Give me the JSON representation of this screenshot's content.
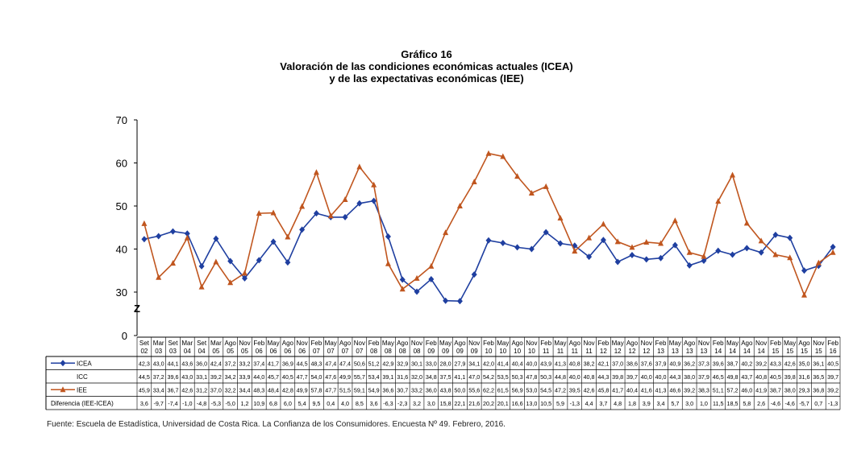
{
  "titles": {
    "line1": "Gráfico 16",
    "line2": "Valoración de las condiciones económicas actuales (ICEA)",
    "line3": "y de las expectativas económicas (IEE)"
  },
  "source": "Fuente: Escuela de Estadística, Universidad de Costa Rica. La Confianza de los Consumidores. Encuesta Nº 49. Febrero, 2016.",
  "colors": {
    "icea": "#1f3fa0",
    "iee": "#c0561f",
    "grid": "#000000"
  },
  "chart_data": {
    "type": "line",
    "ylim": [
      0,
      70
    ],
    "yticks": [
      "0",
      "30",
      "40",
      "50",
      "60",
      "70"
    ],
    "axis_break_marker": "Z",
    "grid": false,
    "legend": "left-table",
    "categories": [
      [
        "Set",
        "02"
      ],
      [
        "Mar",
        "03"
      ],
      [
        "Set",
        "03"
      ],
      [
        "Mar",
        "04"
      ],
      [
        "Set",
        "04"
      ],
      [
        "Mar",
        "05"
      ],
      [
        "Ago",
        "05"
      ],
      [
        "Nov",
        "05"
      ],
      [
        "Feb",
        "06"
      ],
      [
        "May",
        "06"
      ],
      [
        "Ago",
        "06"
      ],
      [
        "Nov",
        "06"
      ],
      [
        "Feb",
        "07"
      ],
      [
        "May",
        "07"
      ],
      [
        "Ago",
        "07"
      ],
      [
        "Nov",
        "07"
      ],
      [
        "Feb",
        "08"
      ],
      [
        "May",
        "08"
      ],
      [
        "Ago",
        "08"
      ],
      [
        "Nov",
        "08"
      ],
      [
        "Feb",
        "09"
      ],
      [
        "May",
        "09"
      ],
      [
        "Ago",
        "09"
      ],
      [
        "Nov",
        "09"
      ],
      [
        "Feb",
        "10"
      ],
      [
        "May",
        "10"
      ],
      [
        "Ago",
        "10"
      ],
      [
        "Nov",
        "10"
      ],
      [
        "Feb",
        "11"
      ],
      [
        "May",
        "11"
      ],
      [
        "Ago",
        "11"
      ],
      [
        "Nov",
        "11"
      ],
      [
        "Feb",
        "12"
      ],
      [
        "May",
        "12"
      ],
      [
        "Ago",
        "12"
      ],
      [
        "Nov",
        "12"
      ],
      [
        "Feb",
        "13"
      ],
      [
        "May",
        "13"
      ],
      [
        "Ago",
        "13"
      ],
      [
        "Nov",
        "13"
      ],
      [
        "Feb",
        "14"
      ],
      [
        "May",
        "14"
      ],
      [
        "Ago",
        "14"
      ],
      [
        "Nov",
        "14"
      ],
      [
        "Feb",
        "15"
      ],
      [
        "May",
        "15"
      ],
      [
        "Ago",
        "15"
      ],
      [
        "Nov",
        "15"
      ],
      [
        "Feb",
        "16"
      ]
    ],
    "series": [
      {
        "name": "ICEA",
        "color": "#1f3fa0",
        "marker": "diamond",
        "show": true,
        "values": [
          "42,3",
          "43,0",
          "44,1",
          "43,6",
          "36,0",
          "42,4",
          "37,2",
          "33,2",
          "37,4",
          "41,7",
          "36,9",
          "44,5",
          "48,3",
          "47,4",
          "47,4",
          "50,6",
          "51,2",
          "42,9",
          "32,9",
          "30,1",
          "33,0",
          "28,0",
          "27,9",
          "34,1",
          "42,0",
          "41,4",
          "40,4",
          "40,0",
          "43,9",
          "41,3",
          "40,8",
          "38,2",
          "42,1",
          "37,0",
          "38,6",
          "37,6",
          "37,9",
          "40,9",
          "36,2",
          "37,3",
          "39,6",
          "38,7",
          "40,2",
          "39,2",
          "43,3",
          "42,6",
          "35,0",
          "36,1",
          "40,5"
        ]
      },
      {
        "name": "ICC",
        "color": "#000000",
        "marker": "none",
        "show": false,
        "values": [
          "44,5",
          "37,2",
          "39,6",
          "43,0",
          "33,1",
          "39,2",
          "34,2",
          "33,9",
          "44,0",
          "45,7",
          "40,5",
          "47,7",
          "54,0",
          "47,6",
          "49,9",
          "55,7",
          "53,4",
          "39,1",
          "31,6",
          "32,0",
          "34,8",
          "37,5",
          "41,1",
          "47,0",
          "54,2",
          "53,5",
          "50,3",
          "47,8",
          "50,3",
          "44,8",
          "40,0",
          "40,8",
          "44,3",
          "39,8",
          "39,7",
          "40,0",
          "40,0",
          "44,3",
          "38,0",
          "37,9",
          "46,5",
          "49,8",
          "43,7",
          "40,8",
          "40,5",
          "39,8",
          "31,6",
          "36,5",
          "39,7"
        ]
      },
      {
        "name": "IEE",
        "color": "#c0561f",
        "marker": "triangle",
        "show": true,
        "values": [
          "45,9",
          "33,4",
          "36,7",
          "42,6",
          "31,2",
          "37,0",
          "32,2",
          "34,4",
          "48,3",
          "48,4",
          "42,8",
          "49,9",
          "57,8",
          "47,7",
          "51,5",
          "59,1",
          "54,9",
          "36,6",
          "30,7",
          "33,2",
          "36,0",
          "43,8",
          "50,0",
          "55,6",
          "62,2",
          "61,5",
          "56,9",
          "53,0",
          "54,5",
          "47,2",
          "39,5",
          "42,6",
          "45,8",
          "41,7",
          "40,4",
          "41,6",
          "41,3",
          "46,6",
          "39,2",
          "38,3",
          "51,1",
          "57,2",
          "46,0",
          "41,9",
          "38,7",
          "38,0",
          "29,3",
          "36,8",
          "39,2"
        ]
      },
      {
        "name": "Diferencia (IEE-ICEA)",
        "color": "#000000",
        "marker": "none",
        "show": false,
        "values": [
          "3,6",
          "-9,7",
          "-7,4",
          "-1,0",
          "-4,8",
          "-5,3",
          "-5,0",
          "1,2",
          "10,9",
          "6,8",
          "6,0",
          "5,4",
          "9,5",
          "0,4",
          "4,0",
          "8,5",
          "3,6",
          "-6,3",
          "-2,3",
          "3,2",
          "3,0",
          "15,8",
          "22,1",
          "21,6",
          "20,2",
          "20,1",
          "16,6",
          "13,0",
          "10,5",
          "5,9",
          "-1,3",
          "4,4",
          "3,7",
          "4,8",
          "1,8",
          "3,9",
          "3,4",
          "5,7",
          "3,0",
          "1,0",
          "11,5",
          "18,5",
          "5,8",
          "2,6",
          "-4,6",
          "-4,6",
          "-5,7",
          "0,7",
          "-1,3"
        ]
      }
    ]
  }
}
